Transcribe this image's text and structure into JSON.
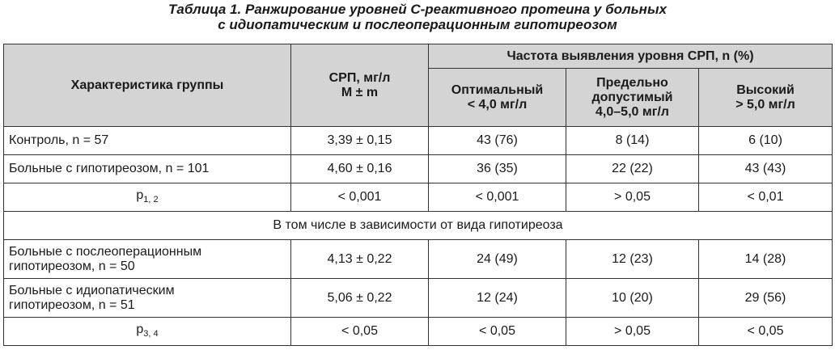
{
  "title": {
    "line1": "Таблица 1. Ранжирование уровней С-реактивного протеина у больных",
    "line2": "с идиопатическим и послеоперационным гипотиреозом"
  },
  "header": {
    "group": "Характеристика группы",
    "crp": [
      "СРП, мг/л",
      "M ± m"
    ],
    "freq": "Частота выявления уровня СРП, n (%)",
    "optimal": [
      "Оптимальный",
      "< 4,0 мг/л"
    ],
    "borderline": [
      "Предельно",
      "допустимый",
      "4,0–5,0 мг/л"
    ],
    "high": [
      "Высокий",
      "> 5,0 мг/л"
    ]
  },
  "rows": [
    {
      "group": [
        "Контроль, n = 57"
      ],
      "crp": "3,39 ± 0,15",
      "optimal": "43 (76)",
      "borderline": "8 (14)",
      "high": "6 (10)"
    },
    {
      "group": [
        "Больные с гипотиреозом, n = 101"
      ],
      "crp": "4,60 ± 0,16",
      "optimal": "36 (35)",
      "borderline": "22 (22)",
      "high": "43 (43)"
    }
  ],
  "p12": {
    "label": "p",
    "sub": "1, 2",
    "crp": "< 0,001",
    "optimal": "< 0,001",
    "borderline": "> 0,05",
    "high": "< 0,01"
  },
  "section": "В том числе в зависимости от вида гипотиреоза",
  "rows2": [
    {
      "group": [
        "Больные с послеоперационным",
        "гипотиреозом, n = 50"
      ],
      "crp": "4,13 ± 0,22",
      "optimal": "24 (49)",
      "borderline": "12 (23)",
      "high": "14 (28)"
    },
    {
      "group": [
        "Больные с идиопатическим",
        "гипотиреозом, n = 51"
      ],
      "crp": "5,06 ± 0,22",
      "optimal": "12 (24)",
      "borderline": "10 (20)",
      "high": "29 (56)"
    }
  ],
  "p34": {
    "label": "p",
    "sub": "3, 4",
    "crp": "< 0,05",
    "optimal": "< 0,05",
    "borderline": "> 0,05",
    "high": "< 0,05"
  },
  "colors": {
    "header_bg": "#d4d4d4",
    "border": "#333333"
  }
}
